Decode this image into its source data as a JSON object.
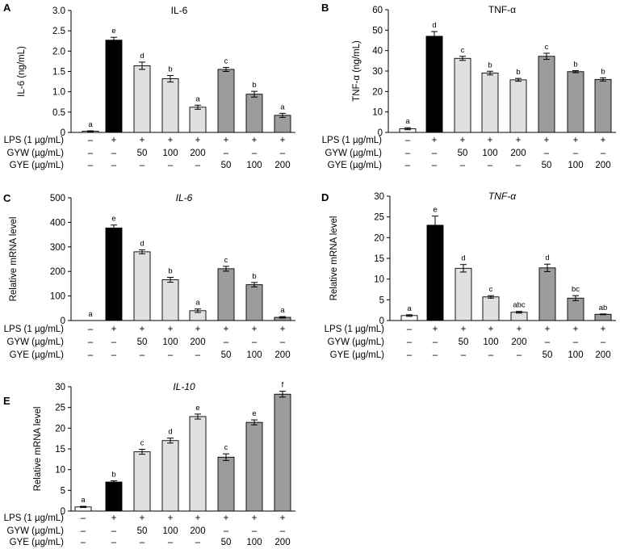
{
  "conditions": {
    "row_labels": [
      "LPS (1 µg/mL)",
      "GYW (µg/mL)",
      "GYE (µg/mL)"
    ],
    "rows": [
      [
        "–",
        "+",
        "+",
        "+",
        "+",
        "+",
        "+",
        "+"
      ],
      [
        "–",
        "–",
        "50",
        "100",
        "200",
        "–",
        "–",
        "–"
      ],
      [
        "–",
        "–",
        "–",
        "–",
        "–",
        "50",
        "100",
        "200"
      ]
    ]
  },
  "colors": {
    "control": "#ffffff",
    "lps": "#000000",
    "gyw": "#e0e0e0",
    "gye": "#9c9c9c",
    "axis": "#000000"
  },
  "chart_data": [
    {
      "panel": "A",
      "type": "bar",
      "title": "IL-6",
      "title_italic": false,
      "ylabel": "IL-6 (ng/mL)",
      "ylim": [
        0,
        3
      ],
      "yticks": [
        "0",
        "0.5",
        "1.0",
        "1.5",
        "2.0",
        "2.5",
        "3.0"
      ],
      "ytick_values": [
        0,
        0.5,
        1.0,
        1.5,
        2.0,
        2.5,
        3.0
      ],
      "values": [
        0.03,
        2.27,
        1.64,
        1.32,
        0.62,
        1.55,
        0.94,
        0.42
      ],
      "errors": [
        0.01,
        0.07,
        0.09,
        0.08,
        0.05,
        0.05,
        0.07,
        0.05
      ],
      "letters": [
        "a",
        "e",
        "d",
        "b",
        "a",
        "c",
        "b",
        "a"
      ]
    },
    {
      "panel": "B",
      "type": "bar",
      "title": "TNF-α",
      "title_italic": false,
      "ylabel": "TNF-α (ng/mL)",
      "ylim": [
        0,
        60
      ],
      "yticks": [
        "0",
        "10",
        "20",
        "30",
        "40",
        "50",
        "60"
      ],
      "ytick_values": [
        0,
        10,
        20,
        30,
        40,
        50,
        60
      ],
      "values": [
        1.8,
        47,
        36.2,
        29,
        25.7,
        37.2,
        29.7,
        25.9
      ],
      "errors": [
        0.5,
        2.3,
        1.0,
        0.9,
        0.7,
        1.5,
        0.5,
        0.8
      ],
      "letters": [
        "a",
        "d",
        "c",
        "b",
        "b",
        "c",
        "b",
        "b"
      ]
    },
    {
      "panel": "C",
      "type": "bar",
      "title": "IL-6",
      "title_italic": true,
      "ylabel": "Relative mRNA level",
      "ylim": [
        0,
        500
      ],
      "yticks": [
        "0",
        "100",
        "200",
        "300",
        "400",
        "500"
      ],
      "ytick_values": [
        0,
        100,
        200,
        300,
        400,
        500
      ],
      "values": [
        0,
        377,
        280,
        166,
        40,
        211,
        146,
        13
      ],
      "errors": [
        0,
        12,
        8,
        10,
        7,
        10,
        9,
        3
      ],
      "letters": [
        "a",
        "e",
        "d",
        "b",
        "a",
        "c",
        "b",
        "a"
      ]
    },
    {
      "panel": "D",
      "type": "bar",
      "title": "TNF-α",
      "title_italic": true,
      "ylabel": "Relative mRNA level",
      "ylim": [
        0,
        30
      ],
      "yticks": [
        "0",
        "5",
        "10",
        "15",
        "20",
        "25",
        "30"
      ],
      "ytick_values": [
        0,
        5,
        10,
        15,
        20,
        25,
        30
      ],
      "values": [
        1.2,
        23,
        12.6,
        5.7,
        2.0,
        12.7,
        5.4,
        1.5
      ],
      "errors": [
        0.2,
        2.2,
        0.9,
        0.3,
        0.2,
        0.9,
        0.6,
        0.1
      ],
      "letters": [
        "a",
        "e",
        "d",
        "c",
        "abc",
        "d",
        "bc",
        "ab"
      ]
    },
    {
      "panel": "E",
      "type": "bar",
      "title": "IL-10",
      "title_italic": true,
      "ylabel": "Relative mRNA level",
      "ylim": [
        0,
        30
      ],
      "yticks": [
        "0",
        "5",
        "10",
        "15",
        "20",
        "25",
        "30"
      ],
      "ytick_values": [
        0,
        5,
        10,
        15,
        20,
        25,
        30
      ],
      "values": [
        1.0,
        7.0,
        14.3,
        17.0,
        22.8,
        13.0,
        21.4,
        28.2
      ],
      "errors": [
        0.15,
        0.3,
        0.6,
        0.6,
        0.6,
        0.8,
        0.6,
        0.7
      ],
      "letters": [
        "a",
        "b",
        "c",
        "d",
        "e",
        "c",
        "e",
        "f"
      ]
    }
  ]
}
